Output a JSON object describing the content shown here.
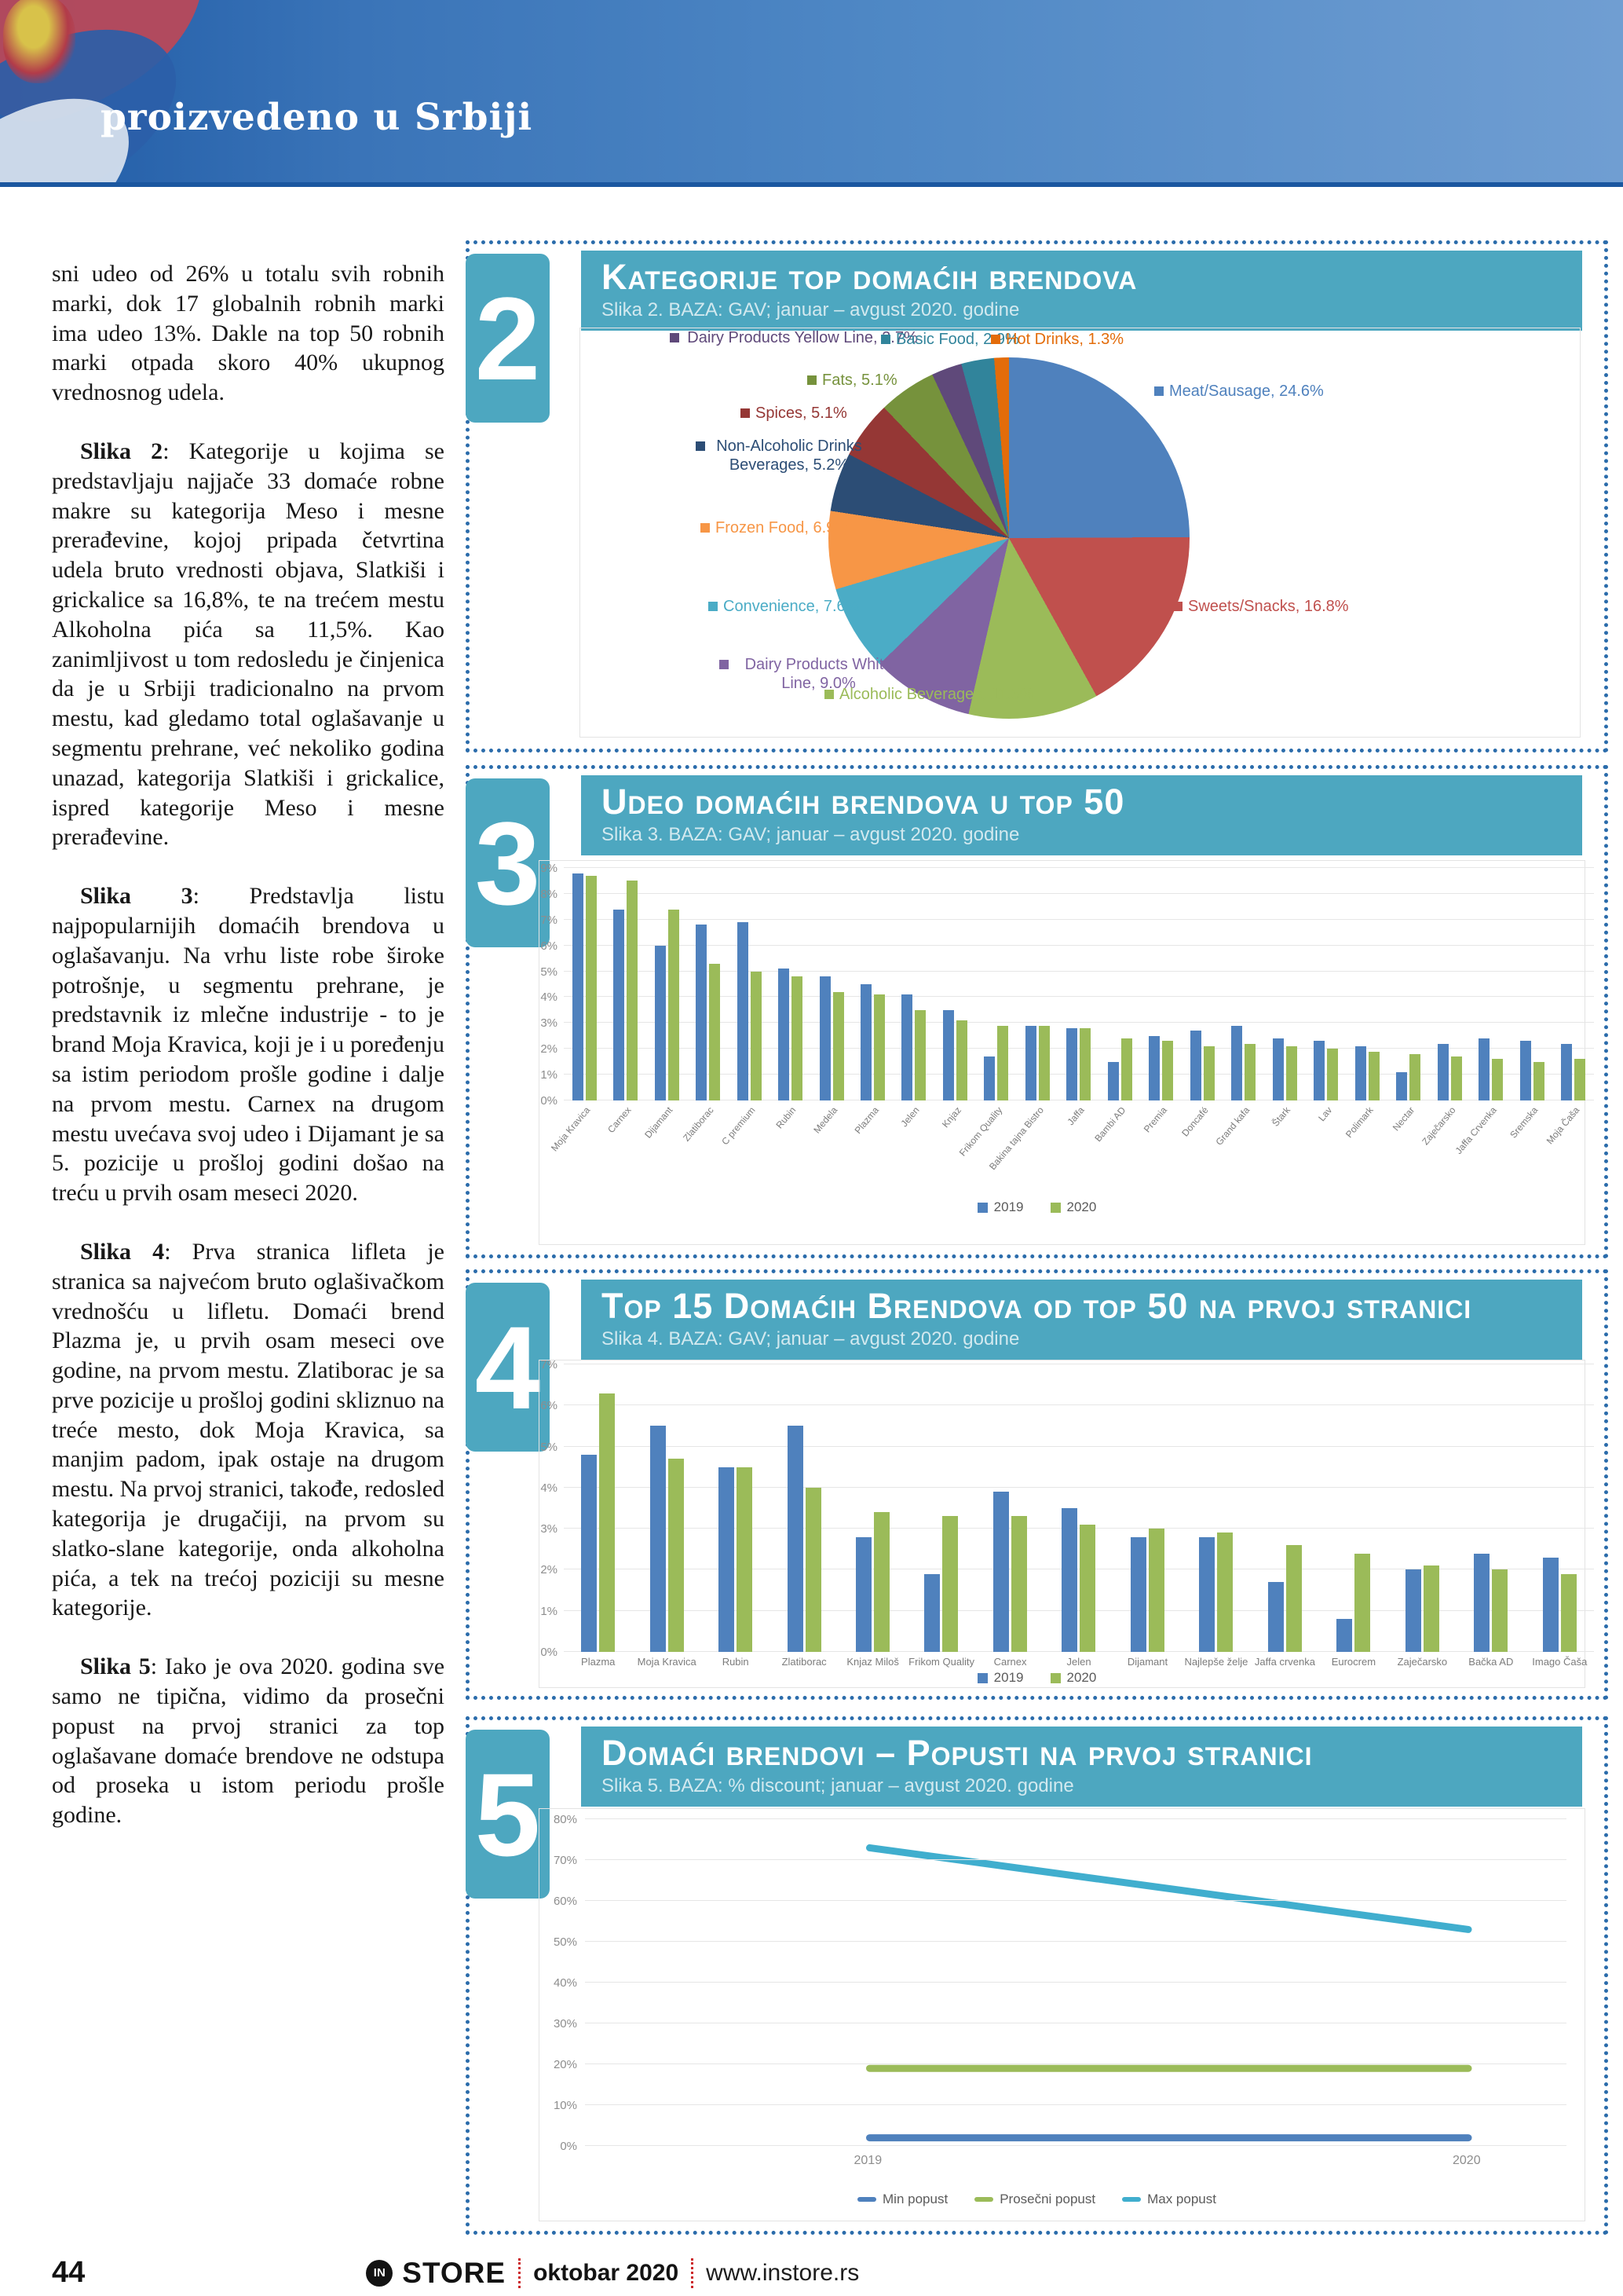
{
  "header": {
    "title": "proizvedeno u Srbiji"
  },
  "article": {
    "paragraphs": [
      {
        "lead": "",
        "text": "sni udeo od 26% u totalu svih robnih marki, dok 17 globalnih robnih marki ima udeo 13%. Dakle na top 50 robnih marki otpada skoro 40% ukupnog vrednosnog udela."
      },
      {
        "lead": "Slika 2",
        "text": ": Kategorije u kojima se predstavljaju najjače 33 domaće robne makre su kategorija Meso i mesne prerađevine, kojoj pripada četvrtina udela bruto vrednosti objava, Slatkiši i grickalice sa 16,8%, te na trećem mestu Alkoholna pića sa 11,5%. Kao zanimljivost u tom redosledu je činjenica da je u Srbiji tradicionalno na prvom mestu, kad gledamo total oglašavanje u segmentu prehrane, već nekoliko godina unazad, kategorija Slatkiši i grickalice, ispred kategorije Meso i mesne prerađevine."
      },
      {
        "lead": "Slika 3",
        "text": ": Predstavlja listu najpopularnijih domaćih brendova u oglašavanju. Na vrhu liste robe široke potrošnje, u segmentu prehrane, je predstavnik iz mlečne industrije - to je brand Moja Kravica, koji je i u poređenju sa istim periodom prošle godine i dalje na prvom mestu.  Carnex na drugom mestu uvećava svoj udeo i Dijamant je sa 5. pozicije u prošloj godini došao na treću u prvih osam meseci 2020."
      },
      {
        "lead": "Slika 4",
        "text": ": Prva stranica lifleta je stranica sa najvećom bruto oglašivačkom vrednošću u lifletu. Domaći brend Plazma je, u prvih osam meseci ove godine, na prvom mestu. Zlatiborac je sa prve pozicije u prošloj godini skliznuo na treće mesto, dok Moja Kravica, sa manjim padom, ipak ostaje na drugom mestu. Na prvoj stranici, takođe, redosled kategorija je drugačiji, na prvom su slatko-slane kategorije, onda alkoholna pića, a tek na trećoj poziciji su mesne kategorije."
      },
      {
        "lead": "Slika 5",
        "text": ": Iako je ova 2020. godina sve samo ne tipična, vidimo da prosečni popust na prvoj stranici za top oglašavane domaće brendove ne odstupa od proseka u istom periodu prošle godine."
      }
    ]
  },
  "chart_data": [
    {
      "id": "fig2",
      "number": "2",
      "type": "pie",
      "title": "Kategorije top domaćih brendova",
      "subtitle": "Slika 2. BAZA: GAV; januar – avgust 2020. godine",
      "legend_position": "callout-labels",
      "slices": [
        {
          "label": "Meat/Sausage, 24.6%",
          "value": 24.6,
          "color": "#4F81BD"
        },
        {
          "label": "Sweets/Snacks, 16.8%",
          "value": 16.8,
          "color": "#C0504D"
        },
        {
          "label": "Alcoholic Beverages, 11.5%",
          "value": 11.5,
          "color": "#9BBB59"
        },
        {
          "label": "Dairy Products White Line, 9.0%",
          "value": 9.0,
          "color": "#8064A2"
        },
        {
          "label": "Convenience, 7.6%",
          "value": 7.6,
          "color": "#4BACC6"
        },
        {
          "label": "Frozen Food, 6.9%",
          "value": 6.9,
          "color": "#F79646"
        },
        {
          "label": "Non-Alcoholic Drinks Beverages, 5.2%",
          "value": 5.2,
          "color": "#2C4D75"
        },
        {
          "label": "Spices, 5.1%",
          "value": 5.1,
          "color": "#953735"
        },
        {
          "label": "Fats, 5.1%",
          "value": 5.1,
          "color": "#76923C"
        },
        {
          "label": "Dairy Products Yellow Line, 2.7%",
          "value": 2.7,
          "color": "#5F497A"
        },
        {
          "label": "Basic Food, 2.9%",
          "value": 2.9,
          "color": "#31849B"
        },
        {
          "label": "Hot Drinks, 1.3%",
          "value": 1.3,
          "color": "#E36C0A"
        }
      ]
    },
    {
      "id": "fig3",
      "number": "3",
      "type": "bar",
      "title": "Udeo domaćih brendova u top 50",
      "subtitle": "Slika 3. BAZA: GAV; januar – avgust 2020. godine",
      "ylim": [
        0,
        9
      ],
      "ystep": 1,
      "grid": true,
      "legend_position": "bottom",
      "categories": [
        "Moja Kravica",
        "Carnex",
        "Dijamant",
        "Zlatiborac",
        "C premium",
        "Rubin",
        "Medela",
        "Plazma",
        "Jelen",
        "Knjaz",
        "Frikom Quality",
        "Bakina tajna Bistro",
        "Jaffa",
        "Bambi AD",
        "Premia",
        "Doncafé",
        "Grand kafa",
        "Štark",
        "Lav",
        "Polimark",
        "Nectar",
        "Zaječarsko",
        "Jaffa Crvenka",
        "Sremska",
        "Moja Čaša"
      ],
      "series": [
        {
          "name": "2019",
          "color": "#4F81BD",
          "values": [
            8.8,
            7.4,
            6.0,
            6.8,
            6.9,
            5.1,
            4.8,
            4.5,
            4.1,
            3.5,
            1.7,
            2.9,
            2.8,
            1.5,
            2.5,
            2.7,
            2.9,
            2.4,
            2.3,
            2.1,
            1.1,
            2.2,
            2.4,
            2.3,
            2.2
          ]
        },
        {
          "name": "2020",
          "color": "#9BBB59",
          "values": [
            8.7,
            8.5,
            7.4,
            5.3,
            5.0,
            4.8,
            4.2,
            4.1,
            3.5,
            3.1,
            2.9,
            2.9,
            2.8,
            2.4,
            2.3,
            2.1,
            2.2,
            2.1,
            2.0,
            1.9,
            1.8,
            1.7,
            1.6,
            1.5,
            1.6
          ]
        }
      ]
    },
    {
      "id": "fig4",
      "number": "4",
      "type": "bar",
      "title": "Top 15 Domaćih Brendova od top 50 na prvoj stranici",
      "subtitle": "Slika 4. BAZA: GAV; januar – avgust 2020. godine",
      "ylim": [
        0,
        7
      ],
      "ystep": 1,
      "grid": true,
      "legend_position": "bottom",
      "categories": [
        "Plazma",
        "Moja Kravica",
        "Rubin",
        "Zlatiborac",
        "Knjaz Miloš",
        "Frikom Quality",
        "Carnex",
        "Jelen",
        "Dijamant",
        "Najlepše želje",
        "Jaffa crvenka",
        "Eurocrem",
        "Zaječarsko",
        "Bačka AD",
        "Imago Čaša"
      ],
      "series": [
        {
          "name": "2019",
          "color": "#4F81BD",
          "values": [
            4.8,
            5.5,
            4.5,
            5.5,
            2.8,
            1.9,
            3.9,
            3.5,
            2.8,
            2.8,
            1.7,
            0.8,
            2.0,
            2.4,
            2.3
          ]
        },
        {
          "name": "2020",
          "color": "#9BBB59",
          "values": [
            6.3,
            4.7,
            4.5,
            4.0,
            3.4,
            3.3,
            3.3,
            3.1,
            3.0,
            2.9,
            2.6,
            2.4,
            2.1,
            2.0,
            1.9
          ]
        }
      ]
    },
    {
      "id": "fig5",
      "number": "5",
      "type": "line",
      "title": "Domaći brendovi – Popusti na prvoj stranici",
      "subtitle": "Slika 5. BAZA: % discount; januar – avgust 2020. godine",
      "ylim": [
        0,
        80
      ],
      "ystep": 10,
      "grid": true,
      "legend_position": "bottom",
      "x": [
        "2019",
        "2020"
      ],
      "series": [
        {
          "name": "Min popust",
          "color": "#4F81BD",
          "values": [
            2,
            2
          ]
        },
        {
          "name": "Prosečni popust",
          "color": "#9BBB59",
          "values": [
            19,
            19
          ]
        },
        {
          "name": "Max popust",
          "color": "#40AECE",
          "values": [
            73,
            53
          ]
        }
      ]
    }
  ],
  "footer": {
    "page": "44",
    "brand_mark": "IN",
    "brand": "STORE",
    "issue": "oktobar 2020",
    "site": "www.instore.rs"
  }
}
